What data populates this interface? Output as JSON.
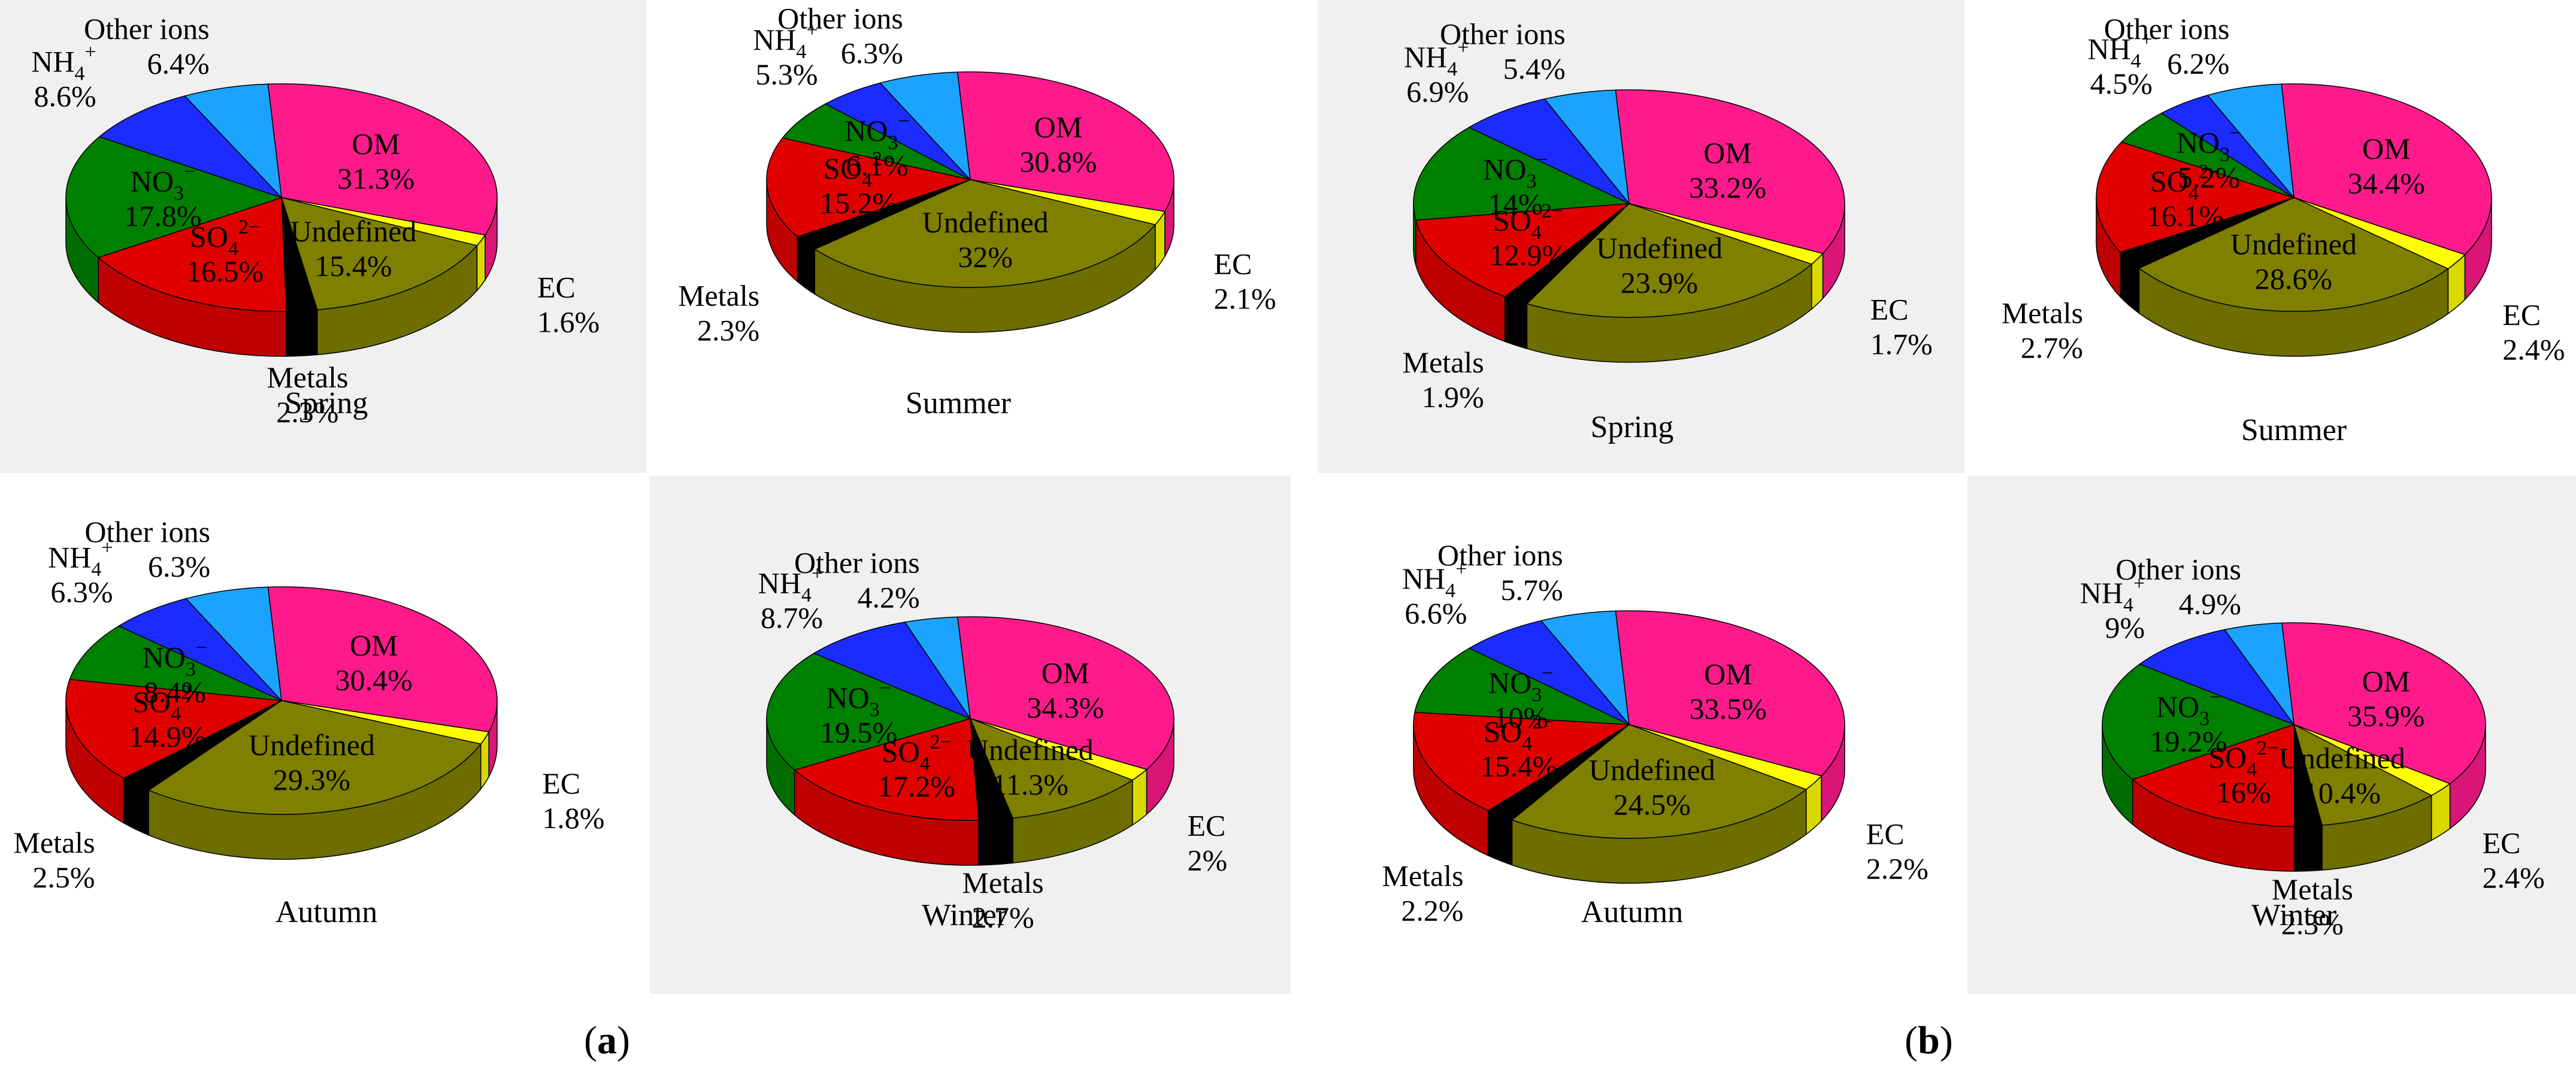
{
  "panel_labels": {
    "a": "a",
    "b": "b"
  },
  "colors": {
    "OM": "#ff1a8c",
    "EC": "#ffff00",
    "Undefined": "#808000",
    "Metals": "#000000",
    "SO4": "#e00000",
    "NO3": "#008000",
    "NH4": "#1a2cff",
    "Other ions": "#1aa3ff"
  },
  "chart_data": [
    {
      "type": "pie",
      "panel": "a",
      "season": "Spring",
      "slices": [
        {
          "label": "OM",
          "value": 31.3,
          "text": "31.3%"
        },
        {
          "label": "EC",
          "value": 1.6,
          "text": "1.6%"
        },
        {
          "label": "Undefined",
          "value": 15.4,
          "text": "15.4%"
        },
        {
          "label": "Metals",
          "value": 2.3,
          "text": "2.3%"
        },
        {
          "label": "SO4",
          "value": 16.5,
          "text": "16.5%"
        },
        {
          "label": "NO3",
          "value": 17.8,
          "text": "17.8%"
        },
        {
          "label": "NH4",
          "value": 8.6,
          "text": "8.6%"
        },
        {
          "label": "Other ions",
          "value": 6.4,
          "text": "6.4%"
        }
      ]
    },
    {
      "type": "pie",
      "panel": "a",
      "season": "Summer",
      "slices": [
        {
          "label": "OM",
          "value": 30.8,
          "text": "30.8%"
        },
        {
          "label": "EC",
          "value": 2.1,
          "text": "2.1%"
        },
        {
          "label": "Undefined",
          "value": 32,
          "text": "32%"
        },
        {
          "label": "Metals",
          "value": 2.3,
          "text": "2.3%"
        },
        {
          "label": "SO4",
          "value": 15.2,
          "text": "15.2%"
        },
        {
          "label": "NO3",
          "value": 6.1,
          "text": "6.1%"
        },
        {
          "label": "NH4",
          "value": 5.3,
          "text": "5.3%"
        },
        {
          "label": "Other ions",
          "value": 6.3,
          "text": "6.3%"
        }
      ]
    },
    {
      "type": "pie",
      "panel": "a",
      "season": "Autumn",
      "slices": [
        {
          "label": "OM",
          "value": 30.4,
          "text": "30.4%"
        },
        {
          "label": "EC",
          "value": 1.8,
          "text": "1.8%"
        },
        {
          "label": "Undefined",
          "value": 29.3,
          "text": "29.3%"
        },
        {
          "label": "Metals",
          "value": 2.5,
          "text": "2.5%"
        },
        {
          "label": "SO4",
          "value": 14.9,
          "text": "14.9%"
        },
        {
          "label": "NO3",
          "value": 8.4,
          "text": "8.4%"
        },
        {
          "label": "NH4",
          "value": 6.3,
          "text": "6.3%"
        },
        {
          "label": "Other ions",
          "value": 6.3,
          "text": "6.3%"
        }
      ]
    },
    {
      "type": "pie",
      "panel": "a",
      "season": "Winter",
      "slices": [
        {
          "label": "OM",
          "value": 34.3,
          "text": "34.3%"
        },
        {
          "label": "EC",
          "value": 2,
          "text": "2%"
        },
        {
          "label": "Undefined",
          "value": 11.3,
          "text": "11.3%"
        },
        {
          "label": "Metals",
          "value": 2.7,
          "text": "2.7%"
        },
        {
          "label": "SO4",
          "value": 17.2,
          "text": "17.2%"
        },
        {
          "label": "NO3",
          "value": 19.5,
          "text": "19.5%"
        },
        {
          "label": "NH4",
          "value": 8.7,
          "text": "8.7%"
        },
        {
          "label": "Other ions",
          "value": 4.2,
          "text": "4.2%"
        }
      ]
    },
    {
      "type": "pie",
      "panel": "b",
      "season": "Spring",
      "slices": [
        {
          "label": "OM",
          "value": 33.2,
          "text": "33.2%"
        },
        {
          "label": "EC",
          "value": 1.7,
          "text": "1.7%"
        },
        {
          "label": "Undefined",
          "value": 23.9,
          "text": "23.9%"
        },
        {
          "label": "Metals",
          "value": 1.9,
          "text": "1.9%"
        },
        {
          "label": "SO4",
          "value": 12.9,
          "text": "12.9%"
        },
        {
          "label": "NO3",
          "value": 14,
          "text": "14%"
        },
        {
          "label": "NH4",
          "value": 6.9,
          "text": "6.9%"
        },
        {
          "label": "Other ions",
          "value": 5.4,
          "text": "5.4%"
        }
      ]
    },
    {
      "type": "pie",
      "panel": "b",
      "season": "Summer",
      "slices": [
        {
          "label": "OM",
          "value": 34.4,
          "text": "34.4%"
        },
        {
          "label": "EC",
          "value": 2.4,
          "text": "2.4%"
        },
        {
          "label": "Undefined",
          "value": 28.6,
          "text": "28.6%"
        },
        {
          "label": "Metals",
          "value": 2.7,
          "text": "2.7%"
        },
        {
          "label": "SO4",
          "value": 16.1,
          "text": "16.1%"
        },
        {
          "label": "NO3",
          "value": 5.2,
          "text": "5.2%"
        },
        {
          "label": "NH4",
          "value": 4.5,
          "text": "4.5%"
        },
        {
          "label": "Other ions",
          "value": 6.2,
          "text": "6.2%"
        }
      ]
    },
    {
      "type": "pie",
      "panel": "b",
      "season": "Autumn",
      "slices": [
        {
          "label": "OM",
          "value": 33.5,
          "text": "33.5%"
        },
        {
          "label": "EC",
          "value": 2.2,
          "text": "2.2%"
        },
        {
          "label": "Undefined",
          "value": 24.5,
          "text": "24.5%"
        },
        {
          "label": "Metals",
          "value": 2.2,
          "text": "2.2%"
        },
        {
          "label": "SO4",
          "value": 15.4,
          "text": "15.4%"
        },
        {
          "label": "NO3",
          "value": 10,
          "text": "10%"
        },
        {
          "label": "NH4",
          "value": 6.6,
          "text": "6.6%"
        },
        {
          "label": "Other ions",
          "value": 5.7,
          "text": "5.7%"
        }
      ]
    },
    {
      "type": "pie",
      "panel": "b",
      "season": "Winter",
      "slices": [
        {
          "label": "OM",
          "value": 35.9,
          "text": "35.9%"
        },
        {
          "label": "EC",
          "value": 2.4,
          "text": "2.4%"
        },
        {
          "label": "Undefined",
          "value": 10.4,
          "text": "10.4%"
        },
        {
          "label": "Metals",
          "value": 2.3,
          "text": "2.3%"
        },
        {
          "label": "SO4",
          "value": 16,
          "text": "16%"
        },
        {
          "label": "NO3",
          "value": 19.2,
          "text": "19.2%"
        },
        {
          "label": "NH4",
          "value": 9,
          "text": "9%"
        },
        {
          "label": "Other ions",
          "value": 4.9,
          "text": "4.9%"
        }
      ]
    }
  ]
}
